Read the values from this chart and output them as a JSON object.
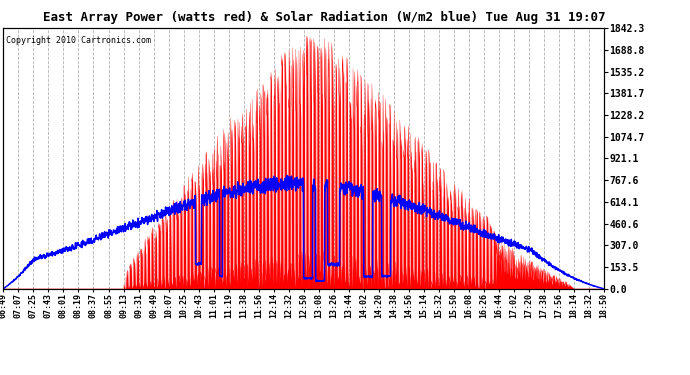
{
  "title": "East Array Power (watts red) & Solar Radiation (W/m2 blue) Tue Aug 31 19:07",
  "copyright": "Copyright 2010 Cartronics.com",
  "bg_color": "#ffffff",
  "plot_bg_color": "#ffffff",
  "grid_color": "#aaaaaa",
  "ymax": 1842.3,
  "ymin": 0.0,
  "yticks": [
    0.0,
    153.5,
    307.0,
    460.6,
    614.1,
    767.6,
    921.1,
    1074.7,
    1228.2,
    1381.7,
    1535.2,
    1688.8,
    1842.3
  ],
  "ytick_labels": [
    "0.0",
    "153.5",
    "307.0",
    "460.6",
    "614.1",
    "767.6",
    "921.1",
    "1074.7",
    "1228.2",
    "1381.7",
    "1535.2",
    "1688.8",
    "1842.3"
  ],
  "xtick_labels": [
    "06:49",
    "07:07",
    "07:25",
    "07:43",
    "08:01",
    "08:19",
    "08:37",
    "08:55",
    "09:13",
    "09:31",
    "09:49",
    "10:07",
    "10:25",
    "10:43",
    "11:01",
    "11:19",
    "11:38",
    "11:56",
    "12:14",
    "12:32",
    "12:50",
    "13:08",
    "13:26",
    "13:44",
    "14:02",
    "14:20",
    "14:38",
    "14:56",
    "15:14",
    "15:32",
    "15:50",
    "16:08",
    "16:26",
    "16:44",
    "17:02",
    "17:20",
    "17:38",
    "17:56",
    "18:14",
    "18:32",
    "18:50"
  ],
  "red_color": "#ff0000",
  "blue_color": "#0000ff",
  "black_color": "#000000",
  "title_fontsize": 9,
  "copyright_fontsize": 6,
  "ytick_fontsize": 7,
  "xtick_fontsize": 6
}
